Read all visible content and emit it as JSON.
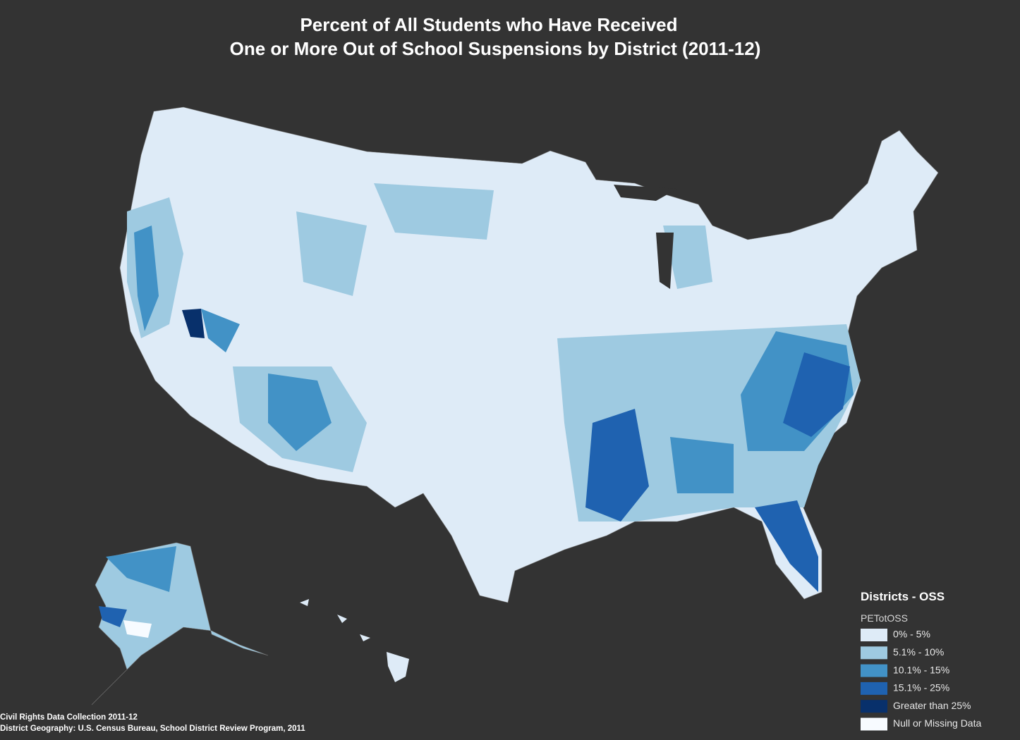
{
  "header": {
    "title": [
      "Percent of All Students who Have Received",
      "One or More Out of School Suspensions by District (2011-12)"
    ]
  },
  "legend": {
    "title": "Districts - OSS",
    "field": "PETotOSS",
    "items": [
      {
        "label": "0% - 5%",
        "color": "#deebf7"
      },
      {
        "label": "5.1% - 10%",
        "color": "#9ecae1"
      },
      {
        "label": "10.1% - 15%",
        "color": "#4292c6"
      },
      {
        "label": "15.1% - 25%",
        "color": "#1f62b0"
      },
      {
        "label": "Greater than 25%",
        "color": "#08306b"
      },
      {
        "label": "Null or Missing Data",
        "color": "#f7fbff"
      }
    ]
  },
  "source": [
    "Civil Rights Data Collection 2011-12",
    "District Geography: U.S. Census Bureau, School District Review Program, 2011"
  ]
}
